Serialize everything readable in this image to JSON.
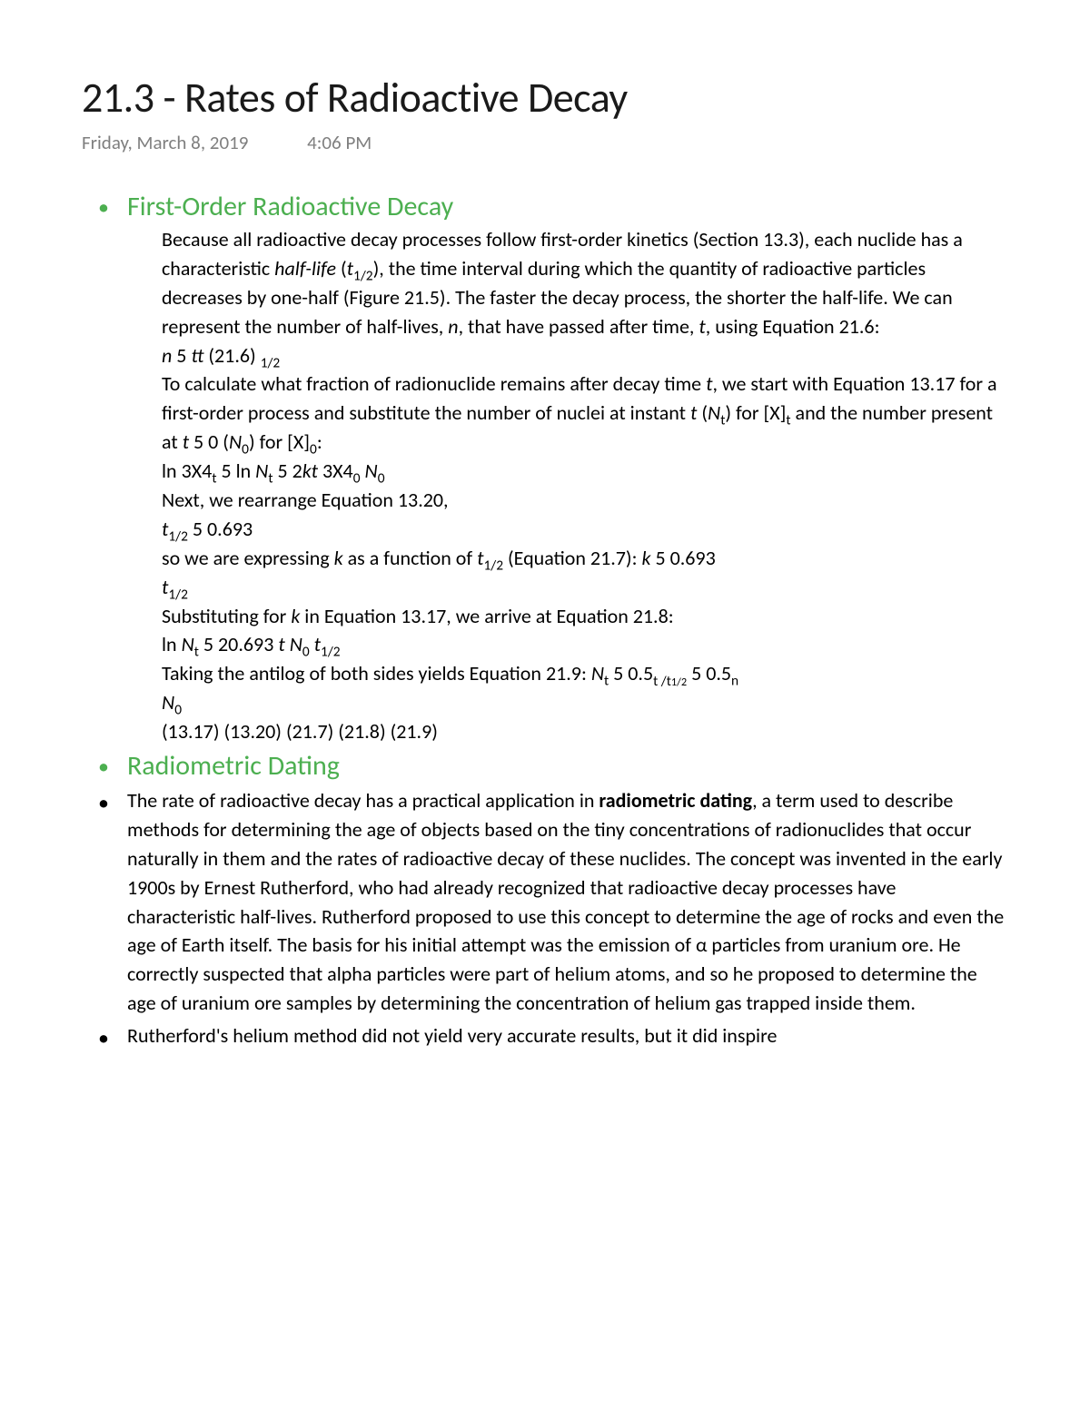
{
  "page": {
    "title": "21.3 - Rates of Radioactive Decay",
    "date": "Friday, March 8, 2019",
    "time": "4:06 PM"
  },
  "colors": {
    "heading_green": "#4caf50",
    "body_text": "#000000",
    "meta_gray": "#7f7f7f",
    "background": "#ffffff"
  },
  "typography": {
    "title_fontsize": 46,
    "heading_fontsize": 30,
    "body_fontsize": 22,
    "meta_fontsize": 21,
    "font_family": "Calibri"
  },
  "sections": [
    {
      "heading": "First-Order Radioactive Decay",
      "lines": [
        {
          "type": "para",
          "html": "Because all radioactive decay processes follow first-order kinetics (Section 13.3), each nuclide has a characteristic <span class='italic'>half-life</span> (<span class='italic'>t</span><span class='sub'>1/2</span>), the time interval during which the quantity of radioactive particles decreases by one-half (Figure 21.5). The faster the decay process, the shorter the half-life. We can represent the number of half-lives, <span class='italic'>n</span>, that have passed after time, <span class='italic'>t</span>, using Equation 21.6:"
        },
        {
          "type": "line",
          "html": "<span class='italic'>n</span> 5 <span class='italic'>tt</span> (21.6) <span class='sub'>1/2</span>"
        },
        {
          "type": "para",
          "html": "To calculate what fraction of radionuclide remains after decay time <span class='italic'>t</span>, we start with Equation 13.17 for a first-order process and substitute the number of nuclei at instant <span class='italic'>t</span> (<span class='italic'>N</span><span class='sub'>t</span>) for [X]<span class='sub'>t</span> and the number present at <span class='italic'>t</span> 5 0 (<span class='italic'>N</span><span class='sub'>0</span>) for [X]<span class='sub'>0</span>:"
        },
        {
          "type": "line",
          "html": "ln 3X4<span class='sub'>t</span> 5 ln <span class='italic'>N</span><span class='sub'>t</span> 5 2<span class='italic'>kt</span> 3X4<span class='sub'>0</span> <span class='italic'>N</span><span class='sub'>0</span>"
        },
        {
          "type": "line",
          "html": "Next, we rearrange Equation 13.20,"
        },
        {
          "type": "line",
          "html": "<span class='italic'>t</span><span class='sub'>1/2</span> 5 0.693"
        },
        {
          "type": "line",
          "html": "so we are expressing <span class='italic'>k</span> as a function of <span class='italic'>t</span><span class='sub'>1/2</span> (Equation 21.7): <span class='italic'>k</span> 5 0.693"
        },
        {
          "type": "line",
          "html": "<span class='italic'>t</span><span class='sub'>1/2</span>"
        },
        {
          "type": "line",
          "html": "Substituting for <span class='italic'>k</span> in Equation 13.17, we arrive at Equation 21.8:"
        },
        {
          "type": "line",
          "html": "ln <span class='italic'>N</span><span class='sub'>t</span> 5 20.693 <span class='italic'>t</span> <span class='italic'>N</span><span class='sub'>0</span> <span class='italic'>t</span><span class='sub'>1/2</span>"
        },
        {
          "type": "line",
          "html": "Taking the antilog of both sides yields Equation 21.9: <span class='italic'>N</span><span class='sub'>t</span> 5 0.5<span class='sub'>t /t<span style='font-size:0.8em'>1/2</span></span> 5 0.5<span class='sub'>n</span>"
        },
        {
          "type": "line",
          "html": "<span class='italic'>N</span><span class='sub'>0</span>"
        },
        {
          "type": "line",
          "html": "(13.17) (13.20) (21.7) (21.8) (21.9)"
        }
      ]
    },
    {
      "heading": "Radiometric Dating",
      "bullets": [
        {
          "html": "The rate of radioactive decay has a practical application in <span class='bold'>radiometric dating</span>, a term used to describe methods for determining the age of objects based on the tiny concentrations of radionuclides that occur naturally in them and the rates of radioactive decay of these nuclides. The concept was invented in the early 1900s by Ernest Rutherford, who had already recognized that radioactive decay processes have characteristic half-lives. Rutherford proposed to use this concept to determine the age of rocks and even the age of Earth itself. The basis for his initial attempt was the emission of α particles from uranium ore. He correctly suspected that alpha particles were part of helium atoms, and so he proposed to determine the age of uranium ore samples by determining the concentration of helium gas trapped inside them."
        },
        {
          "html": "Rutherford's helium method did not yield very accurate results, but it did inspire"
        }
      ]
    }
  ]
}
